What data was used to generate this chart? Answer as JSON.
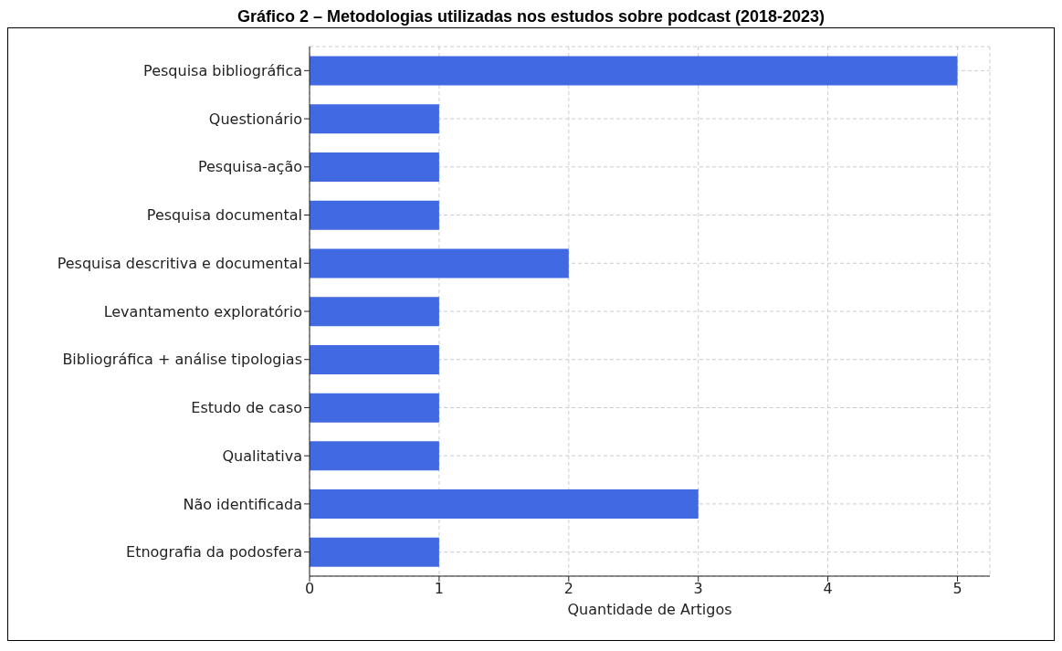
{
  "chart_data": {
    "type": "bar",
    "orientation": "horizontal",
    "title": "Gráfico 2 – Metodologias utilizadas nos estudos sobre podcast (2018-2023)",
    "xlabel": "Quantidade de Artigos",
    "categories": [
      "Pesquisa bibliográfica",
      "Questionário",
      "Pesquisa-ação",
      "Pesquisa documental",
      "Pesquisa descritiva e documental",
      "Levantamento exploratório",
      "Bibliográfica + análise tipologias",
      "Estudo de caso",
      "Qualitativa",
      "Não identificada",
      "Etnografia da podosfera"
    ],
    "values": [
      5,
      1,
      1,
      1,
      2,
      1,
      1,
      1,
      1,
      3,
      1
    ],
    "color": "#4169e1",
    "xlim": [
      0,
      5.25
    ],
    "xticks": [
      0,
      1,
      2,
      3,
      4,
      5
    ],
    "grid": true
  }
}
